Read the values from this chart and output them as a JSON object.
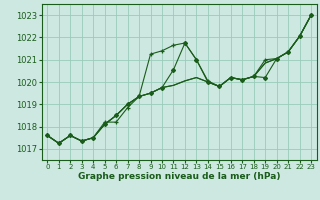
{
  "xlabel": "Graphe pression niveau de la mer (hPa)",
  "xlim": [
    -0.5,
    23.5
  ],
  "ylim": [
    1016.5,
    1023.5
  ],
  "yticks": [
    1017,
    1018,
    1019,
    1020,
    1021,
    1022,
    1023
  ],
  "xticks": [
    0,
    1,
    2,
    3,
    4,
    5,
    6,
    7,
    8,
    9,
    10,
    11,
    12,
    13,
    14,
    15,
    16,
    17,
    18,
    19,
    20,
    21,
    22,
    23
  ],
  "bg_color": "#cce8e0",
  "grid_color": "#99ccbb",
  "line_color": "#1a5c1a",
  "line1_x": [
    0,
    1,
    2,
    3,
    4,
    5,
    6,
    7,
    8,
    9,
    10,
    11,
    12,
    13,
    14,
    15,
    16,
    17,
    18,
    19,
    20,
    21,
    22,
    23
  ],
  "line1_y": [
    1017.6,
    1017.25,
    1017.6,
    1017.35,
    1017.5,
    1018.2,
    1018.2,
    1018.85,
    1019.35,
    1021.25,
    1021.4,
    1021.65,
    1021.75,
    1021.0,
    1020.05,
    1019.8,
    1020.2,
    1020.1,
    1020.25,
    1021.0,
    1021.05,
    1021.35,
    1022.05,
    1023.0
  ],
  "line2_x": [
    0,
    1,
    2,
    3,
    4,
    5,
    6,
    7,
    8,
    9,
    10,
    11,
    12,
    13,
    14,
    15,
    16,
    17,
    18,
    19,
    20,
    21,
    22,
    23
  ],
  "line2_y": [
    1017.6,
    1017.25,
    1017.6,
    1017.35,
    1017.5,
    1018.1,
    1018.5,
    1019.0,
    1019.35,
    1019.5,
    1019.75,
    1020.55,
    1021.75,
    1021.0,
    1020.0,
    1019.8,
    1020.2,
    1020.1,
    1020.25,
    1020.2,
    1021.05,
    1021.35,
    1022.05,
    1023.0
  ],
  "line3_x": [
    0,
    1,
    2,
    3,
    4,
    5,
    6,
    7,
    8,
    9,
    10,
    11,
    12,
    13,
    14,
    15,
    16,
    17,
    18,
    19,
    20,
    21,
    22,
    23
  ],
  "line3_y": [
    1017.6,
    1017.25,
    1017.6,
    1017.35,
    1017.5,
    1018.1,
    1018.5,
    1019.0,
    1019.35,
    1019.5,
    1019.75,
    1019.85,
    1020.05,
    1020.2,
    1020.0,
    1019.8,
    1020.2,
    1020.1,
    1020.25,
    1020.85,
    1021.05,
    1021.35,
    1022.05,
    1023.0
  ],
  "line4_x": [
    0,
    1,
    2,
    3,
    4,
    5,
    6,
    7,
    8,
    9,
    10,
    11,
    12,
    13,
    14,
    15,
    16,
    17,
    18,
    19,
    20,
    21,
    22,
    23
  ],
  "line4_y": [
    1017.6,
    1017.25,
    1017.6,
    1017.35,
    1017.5,
    1018.1,
    1018.5,
    1019.0,
    1019.35,
    1019.5,
    1019.75,
    1019.85,
    1020.05,
    1020.2,
    1020.0,
    1019.8,
    1020.2,
    1020.1,
    1020.25,
    1020.85,
    1021.05,
    1021.35,
    1022.05,
    1023.0
  ],
  "marker_x": [
    0,
    1,
    2,
    3,
    4,
    5,
    6,
    7,
    8,
    9,
    10,
    11,
    12,
    13,
    14,
    15,
    16,
    17,
    18,
    19,
    20,
    21,
    22,
    23
  ],
  "marker_y": [
    1017.6,
    1017.25,
    1017.6,
    1017.35,
    1017.5,
    1018.2,
    1018.2,
    1018.85,
    1019.35,
    1021.25,
    1021.4,
    1021.65,
    1021.75,
    1021.0,
    1020.05,
    1019.8,
    1020.2,
    1020.1,
    1020.25,
    1021.0,
    1021.05,
    1021.35,
    1022.05,
    1023.0
  ]
}
